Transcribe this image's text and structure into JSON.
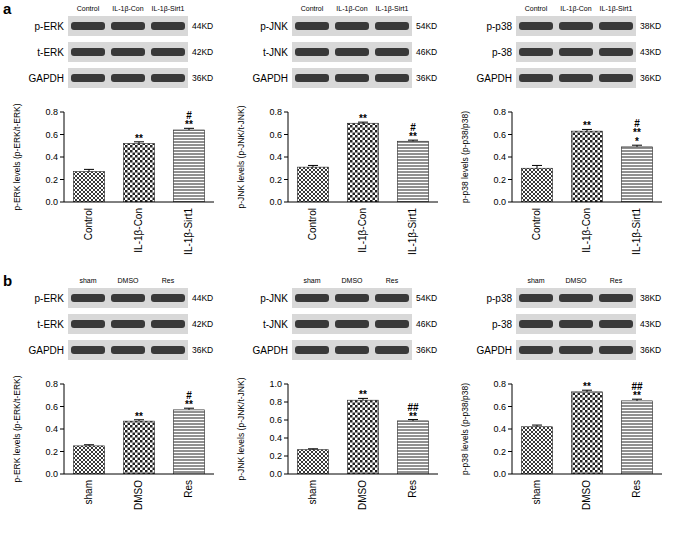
{
  "chart_data": [
    {
      "type": "bar",
      "categories": [
        "Control",
        "IL-1β-Con",
        "IL-1β-Sirt1"
      ],
      "values": [
        0.27,
        0.52,
        0.64
      ],
      "errors": [
        0.02,
        0.015,
        0.015
      ],
      "ylabel": "p-ERK levels (p-ERK/t-ERK)",
      "ylim": [
        0,
        0.8
      ],
      "yticks": [
        {
          "value": 0,
          "label": "0.0"
        },
        0.2,
        0.4,
        0.6,
        0.8
      ],
      "color": "#222222",
      "grid": false,
      "annotations": [
        [],
        [
          "**"
        ],
        [
          "#",
          "**"
        ]
      ]
    },
    {
      "type": "bar",
      "categories": [
        "Control",
        "IL-1β-Con",
        "IL-1β-Sirt1"
      ],
      "values": [
        0.31,
        0.7,
        0.54
      ],
      "errors": [
        0.015,
        0.01,
        0.01
      ],
      "ylabel": "p-JNK levels (p-JNK/t-JNK)",
      "ylim": [
        0,
        0.8
      ],
      "yticks": [
        {
          "value": 0,
          "label": "0.0"
        },
        0.2,
        0.4,
        0.6,
        0.8
      ],
      "color": "#222222",
      "grid": false,
      "annotations": [
        [],
        [
          "**"
        ],
        [
          "#",
          "**"
        ]
      ]
    },
    {
      "type": "bar",
      "categories": [
        "Control",
        "IL-1β-Con",
        "IL-1β-Sirt1"
      ],
      "values": [
        0.3,
        0.63,
        0.49
      ],
      "errors": [
        0.025,
        0.015,
        0.015
      ],
      "ylabel": "p-p38 levels (p-p38/p38)",
      "ylim": [
        0,
        0.8
      ],
      "yticks": [
        {
          "value": 0,
          "label": "0.0"
        },
        0.2,
        0.4,
        0.6,
        0.8
      ],
      "color": "#222222",
      "grid": false,
      "annotations": [
        [],
        [
          "**"
        ],
        [
          "#",
          "**",
          "*"
        ]
      ]
    },
    {
      "type": "bar",
      "categories": [
        "sham",
        "DMSO",
        "Res"
      ],
      "values": [
        0.25,
        0.47,
        0.57
      ],
      "errors": [
        0.01,
        0.012,
        0.015
      ],
      "ylabel": "p-ERK levels (p-ERK/t-ERK)",
      "ylim": [
        0,
        0.8
      ],
      "yticks": [
        {
          "value": 0,
          "label": "0.0"
        },
        0.2,
        0.4,
        0.6,
        0.8
      ],
      "color": "#222222",
      "grid": false,
      "annotations": [
        [],
        [
          "**"
        ],
        [
          "#",
          "**"
        ]
      ]
    },
    {
      "type": "bar",
      "categories": [
        "sham",
        "DMSO",
        "Res"
      ],
      "values": [
        0.27,
        0.82,
        0.59
      ],
      "errors": [
        0.01,
        0.02,
        0.015
      ],
      "ylabel": "p-JNK levels (p-JNK/t-JNK)",
      "ylim": [
        0,
        1.0
      ],
      "yticks": [
        {
          "value": 0,
          "label": "0.0"
        },
        0.2,
        0.4,
        0.6,
        0.8,
        {
          "value": 1.0,
          "label": "1.0"
        }
      ],
      "color": "#222222",
      "grid": false,
      "annotations": [
        [],
        [
          "**"
        ],
        [
          "##",
          "**"
        ]
      ]
    },
    {
      "type": "bar",
      "categories": [
        "sham",
        "DMSO",
        "Res"
      ],
      "values": [
        0.42,
        0.73,
        0.65
      ],
      "errors": [
        0.015,
        0.015,
        0.015
      ],
      "ylabel": "p-p38 levels (p-p38/p38)",
      "ylim": [
        0,
        0.8
      ],
      "yticks": [
        {
          "value": 0,
          "label": "0.0"
        },
        0.2,
        0.4,
        0.6,
        0.8
      ],
      "color": "#222222",
      "grid": false,
      "annotations": [
        [],
        [
          "**"
        ],
        [
          "##",
          "**"
        ]
      ]
    }
  ],
  "panels": [
    {
      "label": "a"
    },
    {
      "label": "b"
    }
  ],
  "blots": [
    {
      "lanes": [
        "Control",
        "IL-1β-Con",
        "IL-1β-Sirt1"
      ],
      "rows": [
        {
          "name": "p-ERK",
          "size": "44KD"
        },
        {
          "name": "t-ERK",
          "size": "42KD"
        },
        {
          "name": "GAPDH",
          "size": "36KD"
        }
      ]
    },
    {
      "lanes": [
        "Control",
        "IL-1β-Con",
        "IL-1β-Sirt1"
      ],
      "rows": [
        {
          "name": "p-JNK",
          "size": "54KD"
        },
        {
          "name": "t-JNK",
          "size": "46KD"
        },
        {
          "name": "GAPDH",
          "size": "36KD"
        }
      ]
    },
    {
      "lanes": [
        "Control",
        "IL-1β-Con",
        "IL-1β-Sirt1"
      ],
      "rows": [
        {
          "name": "p-p38",
          "size": "38KD"
        },
        {
          "name": "p-38",
          "size": "43KD"
        },
        {
          "name": "GAPDH",
          "size": "36KD"
        }
      ]
    },
    {
      "lanes": [
        "sham",
        "DMSO",
        "Res"
      ],
      "rows": [
        {
          "name": "p-ERK",
          "size": "44KD"
        },
        {
          "name": "t-ERK",
          "size": "42KD"
        },
        {
          "name": "GAPDH",
          "size": "36KD"
        }
      ]
    },
    {
      "lanes": [
        "sham",
        "DMSO",
        "Res"
      ],
      "rows": [
        {
          "name": "p-JNK",
          "size": "54KD"
        },
        {
          "name": "t-JNK",
          "size": "46KD"
        },
        {
          "name": "GAPDH",
          "size": "36KD"
        }
      ]
    },
    {
      "lanes": [
        "sham",
        "DMSO",
        "Res"
      ],
      "rows": [
        {
          "name": "p-p38",
          "size": "38KD"
        },
        {
          "name": "p-38",
          "size": "43KD"
        },
        {
          "name": "GAPDH",
          "size": "36KD"
        }
      ]
    }
  ]
}
